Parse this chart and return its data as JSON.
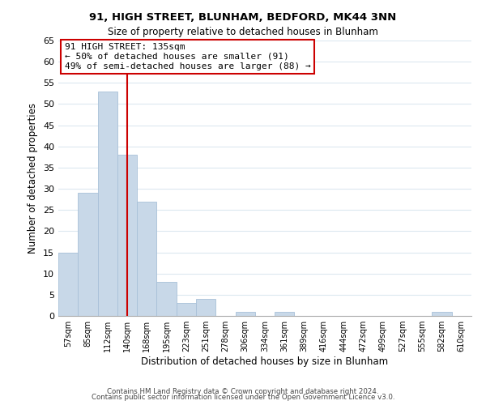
{
  "title1": "91, HIGH STREET, BLUNHAM, BEDFORD, MK44 3NN",
  "title2": "Size of property relative to detached houses in Blunham",
  "xlabel": "Distribution of detached houses by size in Blunham",
  "ylabel": "Number of detached properties",
  "bar_labels": [
    "57sqm",
    "85sqm",
    "112sqm",
    "140sqm",
    "168sqm",
    "195sqm",
    "223sqm",
    "251sqm",
    "278sqm",
    "306sqm",
    "334sqm",
    "361sqm",
    "389sqm",
    "416sqm",
    "444sqm",
    "472sqm",
    "499sqm",
    "527sqm",
    "555sqm",
    "582sqm",
    "610sqm"
  ],
  "bar_values": [
    15,
    29,
    53,
    38,
    27,
    8,
    3,
    4,
    0,
    1,
    0,
    1,
    0,
    0,
    0,
    0,
    0,
    0,
    0,
    1,
    0
  ],
  "bar_color": "#c8d8e8",
  "bar_edge_color": "#a8c0d8",
  "ylim": [
    0,
    65
  ],
  "yticks": [
    0,
    5,
    10,
    15,
    20,
    25,
    30,
    35,
    40,
    45,
    50,
    55,
    60,
    65
  ],
  "ref_line_x": 3.0,
  "ref_line_color": "#cc0000",
  "annotation_title": "91 HIGH STREET: 135sqm",
  "annotation_line1": "← 50% of detached houses are smaller (91)",
  "annotation_line2": "49% of semi-detached houses are larger (88) →",
  "annotation_box_color": "#ffffff",
  "annotation_box_edge": "#cc0000",
  "footer1": "Contains HM Land Registry data © Crown copyright and database right 2024.",
  "footer2": "Contains public sector information licensed under the Open Government Licence v3.0.",
  "bg_color": "#ffffff",
  "grid_color": "#dce8f0"
}
